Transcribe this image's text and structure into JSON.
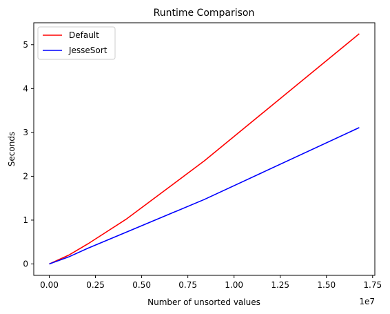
{
  "chart_data": {
    "type": "line",
    "title": "Runtime Comparison",
    "xlabel": "Number of unsorted values",
    "ylabel": "Seconds",
    "x_offset_label": "1e7",
    "xlim": [
      -0.084,
      1.762
    ],
    "ylim": [
      -0.26,
      5.5
    ],
    "x_ticks": [
      0.0,
      0.25,
      0.5,
      0.75,
      1.0,
      1.25,
      1.5,
      1.75
    ],
    "x_tick_labels": [
      "0.00",
      "0.25",
      "0.50",
      "0.75",
      "1.00",
      "1.25",
      "1.50",
      "1.75"
    ],
    "y_ticks": [
      0,
      1,
      2,
      3,
      4,
      5
    ],
    "y_tick_labels": [
      "0",
      "1",
      "2",
      "3",
      "4",
      "5"
    ],
    "grid": false,
    "legend_position": "upper-left",
    "x": [
      0.0,
      0.1049,
      0.2097,
      0.4194,
      0.8389,
      1.6777
    ],
    "series": [
      {
        "name": "Default",
        "color": "#ff0000",
        "values": [
          0.0,
          0.2,
          0.46,
          1.03,
          2.35,
          5.25
        ]
      },
      {
        "name": "JesseSort",
        "color": "#0000ff",
        "values": [
          0.0,
          0.16,
          0.36,
          0.73,
          1.47,
          3.11
        ]
      }
    ]
  }
}
